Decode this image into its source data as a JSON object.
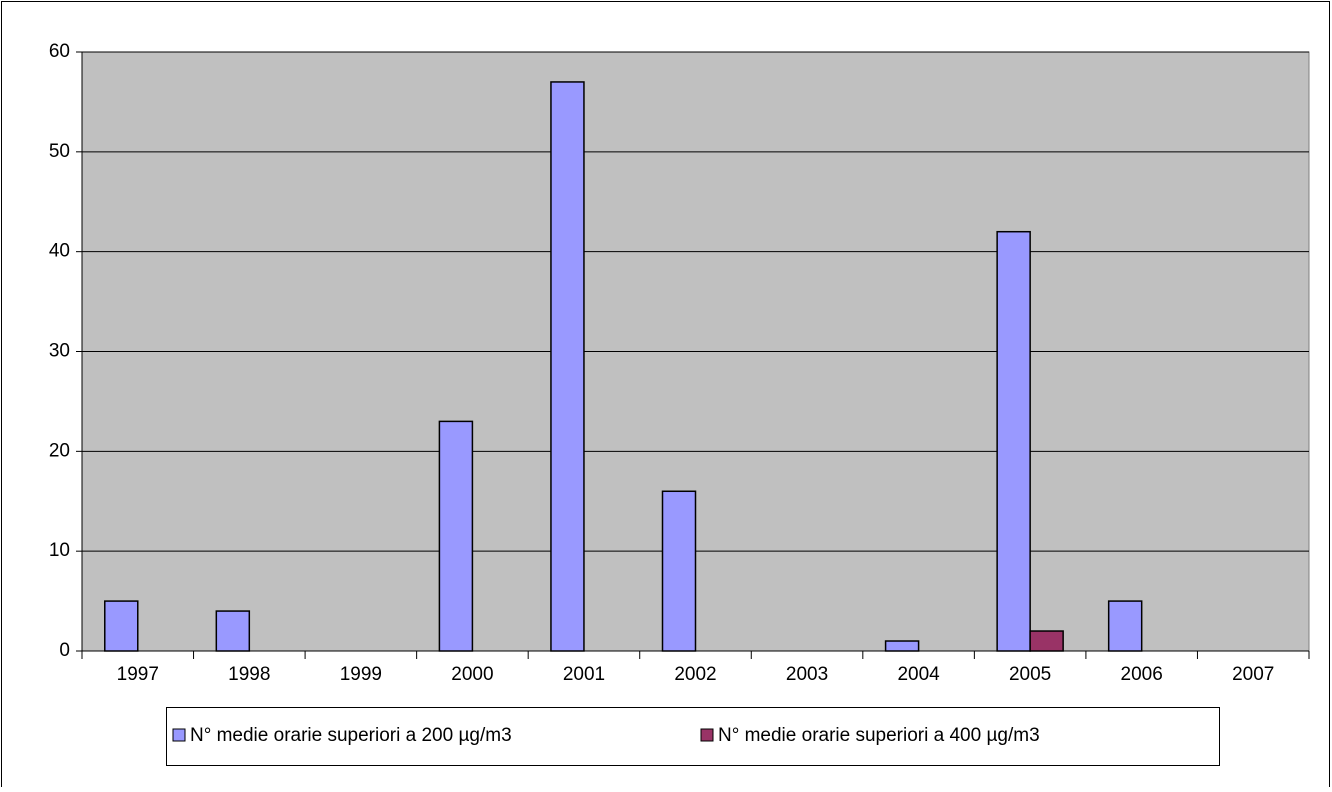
{
  "chart_data": {
    "type": "bar",
    "categories": [
      "1997",
      "1998",
      "1999",
      "2000",
      "2001",
      "2002",
      "2003",
      "2004",
      "2005",
      "2006",
      "2007"
    ],
    "series": [
      {
        "name": "N° medie orarie superiori a 200 µg/m3",
        "color": "#9999ff",
        "values": [
          5,
          4,
          0,
          23,
          57,
          16,
          0,
          1,
          42,
          5,
          0
        ]
      },
      {
        "name": "N° medie orarie superiori a 400 µg/m3",
        "color": "#993366",
        "values": [
          0,
          0,
          0,
          0,
          0,
          0,
          0,
          0,
          2,
          0,
          0
        ]
      }
    ],
    "ylim": [
      0,
      60
    ],
    "yticks": [
      0,
      10,
      20,
      30,
      40,
      50,
      60
    ],
    "grid": true,
    "legend": "bottom"
  }
}
